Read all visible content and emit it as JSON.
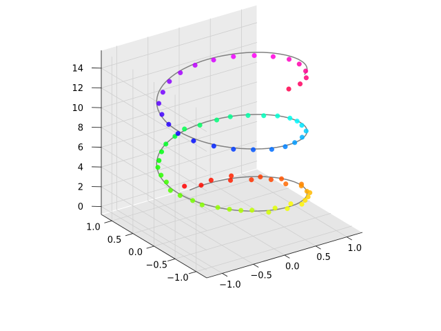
{
  "chart_data": {
    "type": "scatter",
    "projection": "3d",
    "title": "",
    "xlabel": "",
    "ylabel": "",
    "zlabel": "",
    "xlim": [
      -1.25,
      1.25
    ],
    "ylim": [
      -1.25,
      1.25
    ],
    "zlim": [
      -0.8,
      15.8
    ],
    "x_ticks": [
      "−1.0",
      "−0.5",
      "0.0",
      "0.5",
      "1.0"
    ],
    "y_ticks": [
      "−1.0",
      "−0.5",
      "0.0",
      "0.5",
      "1.0"
    ],
    "z_ticks": [
      "0",
      "2",
      "4",
      "6",
      "8",
      "10",
      "12",
      "14"
    ],
    "x_tick_values": [
      -1.0,
      -0.5,
      0.0,
      0.5,
      1.0
    ],
    "y_tick_values": [
      -1.0,
      -0.5,
      0.0,
      0.5,
      1.0
    ],
    "z_tick_values": [
      0,
      2,
      4,
      6,
      8,
      10,
      12,
      14
    ],
    "grid": true,
    "line": {
      "name": "",
      "color": "#808080",
      "description": "helix x = sin(z), y = cos(z)",
      "z_range": [
        0,
        15
      ],
      "samples": 200
    },
    "scatter": {
      "colormap": "hsv",
      "color_by": "z",
      "points": [
        {
          "x": -0.03,
          "y": 1.08,
          "z": 0.25
        },
        {
          "x": 0.15,
          "y": 0.95,
          "z": 0.35
        },
        {
          "x": 0.33,
          "y": 0.98,
          "z": 0.45
        },
        {
          "x": 0.52,
          "y": 0.8,
          "z": 0.55
        },
        {
          "x": 0.6,
          "y": 0.9,
          "z": 0.6
        },
        {
          "x": 0.72,
          "y": 0.6,
          "z": 0.75
        },
        {
          "x": 0.85,
          "y": 0.58,
          "z": 0.85
        },
        {
          "x": 0.9,
          "y": 0.4,
          "z": 0.95
        },
        {
          "x": 1.0,
          "y": 0.3,
          "z": 1.1
        },
        {
          "x": 0.92,
          "y": 0.08,
          "z": 1.3
        },
        {
          "x": 1.05,
          "y": -0.1,
          "z": 1.5
        },
        {
          "x": 0.98,
          "y": -0.2,
          "z": 1.7
        },
        {
          "x": 0.9,
          "y": -0.45,
          "z": 1.95
        },
        {
          "x": 0.88,
          "y": -0.55,
          "z": 2.1
        },
        {
          "x": 0.75,
          "y": -0.7,
          "z": 2.3
        },
        {
          "x": 0.62,
          "y": -0.82,
          "z": 2.5
        },
        {
          "x": 0.48,
          "y": -0.95,
          "z": 2.7
        },
        {
          "x": 0.35,
          "y": -0.88,
          "z": 2.8
        },
        {
          "x": 0.2,
          "y": -1.02,
          "z": 2.95
        },
        {
          "x": 0.05,
          "y": -0.95,
          "z": 3.1
        },
        {
          "x": -0.12,
          "y": -1.05,
          "z": 3.25
        },
        {
          "x": -0.3,
          "y": -0.92,
          "z": 3.45
        },
        {
          "x": -0.45,
          "y": -0.88,
          "z": 3.6
        },
        {
          "x": -0.58,
          "y": -0.8,
          "z": 3.75
        },
        {
          "x": -0.7,
          "y": -0.7,
          "z": 3.9
        },
        {
          "x": -0.85,
          "y": -0.55,
          "z": 4.05
        },
        {
          "x": -0.9,
          "y": -0.4,
          "z": 4.2
        },
        {
          "x": -0.98,
          "y": -0.22,
          "z": 4.4
        },
        {
          "x": -1.02,
          "y": -0.05,
          "z": 4.55
        },
        {
          "x": -0.95,
          "y": 0.15,
          "z": 4.75
        },
        {
          "x": -0.92,
          "y": 0.32,
          "z": 4.95
        },
        {
          "x": -0.85,
          "y": 0.5,
          "z": 5.15
        },
        {
          "x": -0.75,
          "y": 0.62,
          "z": 5.35
        },
        {
          "x": -0.6,
          "y": 0.78,
          "z": 5.55
        },
        {
          "x": -0.45,
          "y": 0.9,
          "z": 5.75
        },
        {
          "x": -0.25,
          "y": 0.98,
          "z": 5.95
        },
        {
          "x": -0.05,
          "y": 1.05,
          "z": 6.15
        },
        {
          "x": 0.15,
          "y": 0.98,
          "z": 6.35
        },
        {
          "x": 0.38,
          "y": 0.92,
          "z": 6.6
        },
        {
          "x": 0.55,
          "y": 0.85,
          "z": 6.8
        },
        {
          "x": 0.72,
          "y": 0.68,
          "z": 7.05
        },
        {
          "x": 0.85,
          "y": 0.5,
          "z": 7.25
        },
        {
          "x": 0.95,
          "y": 0.32,
          "z": 7.5
        },
        {
          "x": 1.0,
          "y": 0.1,
          "z": 7.75
        },
        {
          "x": 0.98,
          "y": -0.1,
          "z": 8.0
        },
        {
          "x": 0.92,
          "y": -0.3,
          "z": 8.2
        },
        {
          "x": 0.82,
          "y": -0.55,
          "z": 8.45
        },
        {
          "x": 0.62,
          "y": -0.75,
          "z": 8.7
        },
        {
          "x": 0.4,
          "y": -0.9,
          "z": 8.95
        },
        {
          "x": 0.18,
          "y": -1.0,
          "z": 9.2
        },
        {
          "x": -0.05,
          "y": -1.02,
          "z": 9.4
        },
        {
          "x": -0.3,
          "y": -0.95,
          "z": 9.65
        },
        {
          "x": -0.55,
          "y": -0.85,
          "z": 9.9
        },
        {
          "x": -0.75,
          "y": -0.68,
          "z": 10.15
        },
        {
          "x": -0.92,
          "y": -0.45,
          "z": 10.4
        },
        {
          "x": -1.0,
          "y": -0.2,
          "z": 10.65
        },
        {
          "x": -0.98,
          "y": 0.05,
          "z": 10.9
        },
        {
          "x": -0.92,
          "y": 0.3,
          "z": 11.15
        },
        {
          "x": -0.8,
          "y": 0.55,
          "z": 11.4
        },
        {
          "x": -0.6,
          "y": 0.75,
          "z": 11.65
        },
        {
          "x": -0.38,
          "y": 0.92,
          "z": 11.9
        },
        {
          "x": -0.15,
          "y": 1.0,
          "z": 12.15
        },
        {
          "x": 0.1,
          "y": 1.02,
          "z": 12.4
        },
        {
          "x": 0.35,
          "y": 0.95,
          "z": 12.65
        },
        {
          "x": 0.58,
          "y": 0.82,
          "z": 12.9
        },
        {
          "x": 0.78,
          "y": 0.62,
          "z": 13.15
        },
        {
          "x": 0.92,
          "y": 0.38,
          "z": 13.4
        },
        {
          "x": 1.0,
          "y": 0.12,
          "z": 13.65
        },
        {
          "x": 0.98,
          "y": -0.15,
          "z": 13.9
        },
        {
          "x": 0.88,
          "y": -0.45,
          "z": 14.15
        },
        {
          "x": 0.72,
          "y": -0.7,
          "z": 14.4
        },
        {
          "x": 0.5,
          "y": -0.88,
          "z": 14.65
        },
        {
          "x": 0.25,
          "y": -0.98,
          "z": 14.85
        }
      ]
    }
  }
}
